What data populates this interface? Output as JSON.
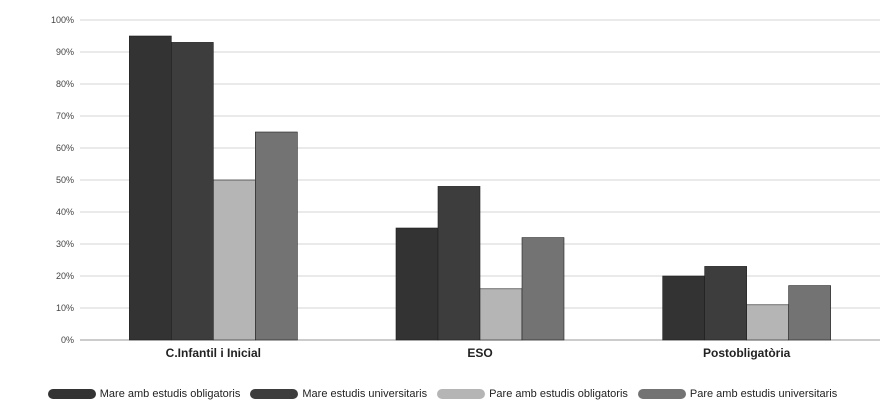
{
  "chart_data": {
    "type": "bar",
    "categories": [
      "C.Infantil i Inicial",
      "ESO",
      "Postobligatòria"
    ],
    "series": [
      {
        "name": "Mare amb estudis obligatoris",
        "values": [
          95,
          35,
          20
        ],
        "color": "#333333"
      },
      {
        "name": "Mare estudis universitaris",
        "values": [
          93,
          48,
          23
        ],
        "color": "#3d3d3d"
      },
      {
        "name": "Pare amb estudis obligatoris",
        "values": [
          50,
          16,
          11
        ],
        "color": "#b5b5b5"
      },
      {
        "name": "Pare amb estudis universitaris",
        "values": [
          65,
          32,
          17
        ],
        "color": "#737373"
      }
    ],
    "yticks": [
      "0%",
      "10%",
      "20%",
      "30%",
      "40%",
      "50%",
      "60%",
      "70%",
      "80%",
      "90%",
      "100%"
    ],
    "ylim": [
      0,
      100
    ],
    "grid": true,
    "legend_position": "bottom",
    "title": "",
    "xlabel": "",
    "ylabel": ""
  }
}
